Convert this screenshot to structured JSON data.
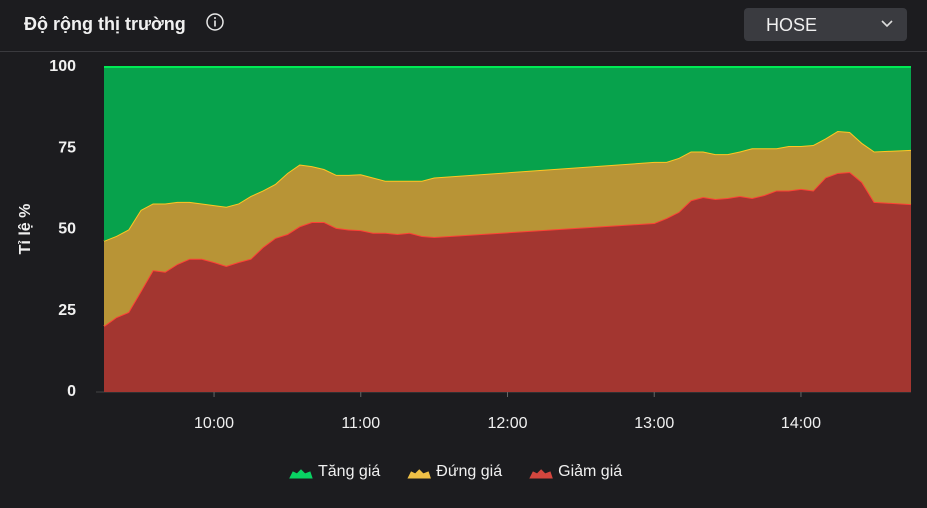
{
  "header": {
    "title": "Độ rộng thị trường",
    "dropdown": "HOSE"
  },
  "chart_data": {
    "type": "area",
    "stacked": true,
    "y_label": "Tỉ lệ %",
    "x": [
      "09:15",
      "09:20",
      "09:25",
      "09:30",
      "09:35",
      "09:40",
      "09:45",
      "09:50",
      "09:55",
      "10:00",
      "10:05",
      "10:10",
      "10:15",
      "10:20",
      "10:25",
      "10:30",
      "10:35",
      "10:40",
      "10:45",
      "10:50",
      "10:55",
      "11:00",
      "11:05",
      "11:10",
      "11:15",
      "11:20",
      "11:25",
      "11:30",
      "13:00",
      "13:05",
      "13:10",
      "13:15",
      "13:20",
      "13:25",
      "13:30",
      "13:35",
      "13:40",
      "13:45",
      "13:50",
      "13:55",
      "14:00",
      "14:05",
      "14:10",
      "14:15",
      "14:20",
      "14:25",
      "14:30",
      "14:45"
    ],
    "xlim": [
      "09:15",
      "14:45"
    ],
    "xticks": [
      "10:00",
      "11:00",
      "12:00",
      "13:00",
      "14:00"
    ],
    "ylim": [
      0,
      100
    ],
    "yticks": [
      0,
      25,
      50,
      75,
      100
    ],
    "grid": false,
    "legend": "bottom",
    "series": [
      {
        "name": "Tăng giá",
        "color": "#07a24c",
        "values": [
          53.5,
          52,
          50,
          44,
          42,
          42,
          41.5,
          41.5,
          42,
          42.5,
          43,
          42,
          39.7,
          38,
          36,
          32.6,
          30,
          30.5,
          31.4,
          33.2,
          33.2,
          33,
          34,
          35,
          35,
          35,
          35,
          34,
          29.2,
          29.2,
          28,
          26,
          26,
          26.8,
          26.8,
          26,
          25,
          25,
          25,
          24.3,
          24.3,
          24,
          22,
          19.7,
          20,
          23.4,
          26,
          25.5
        ]
      },
      {
        "name": "Đứng giá",
        "color": "#b89436",
        "values": [
          26.2,
          25,
          25.4,
          25,
          20.5,
          21,
          19.1,
          17.5,
          17,
          17.5,
          18.2,
          18,
          19.3,
          17.4,
          16.6,
          18.8,
          19,
          17.2,
          16.3,
          16.3,
          16.8,
          17.2,
          17,
          16,
          16.4,
          16,
          17,
          18.3,
          18.8,
          17.3,
          16.6,
          15,
          14,
          13.8,
          13.5,
          13.7,
          15.3,
          14.4,
          13,
          13.7,
          13.2,
          14,
          12,
          12.9,
          12.3,
          12,
          15.5,
          16.7
        ]
      },
      {
        "name": "Giảm giá",
        "color": "#a33630",
        "values": [
          20.3,
          23,
          24.6,
          31,
          37.5,
          37,
          39.4,
          41,
          41,
          40,
          38.8,
          40,
          41,
          44.6,
          47.4,
          48.6,
          51,
          52.3,
          52.3,
          50.5,
          50,
          49.8,
          49,
          49,
          48.6,
          49,
          48,
          47.7,
          52,
          53.5,
          55.4,
          59,
          60,
          59.4,
          59.7,
          60.3,
          59.7,
          60.6,
          62,
          62,
          62.5,
          62,
          66,
          67.4,
          67.7,
          64.6,
          58.5,
          57.8
        ]
      }
    ]
  }
}
